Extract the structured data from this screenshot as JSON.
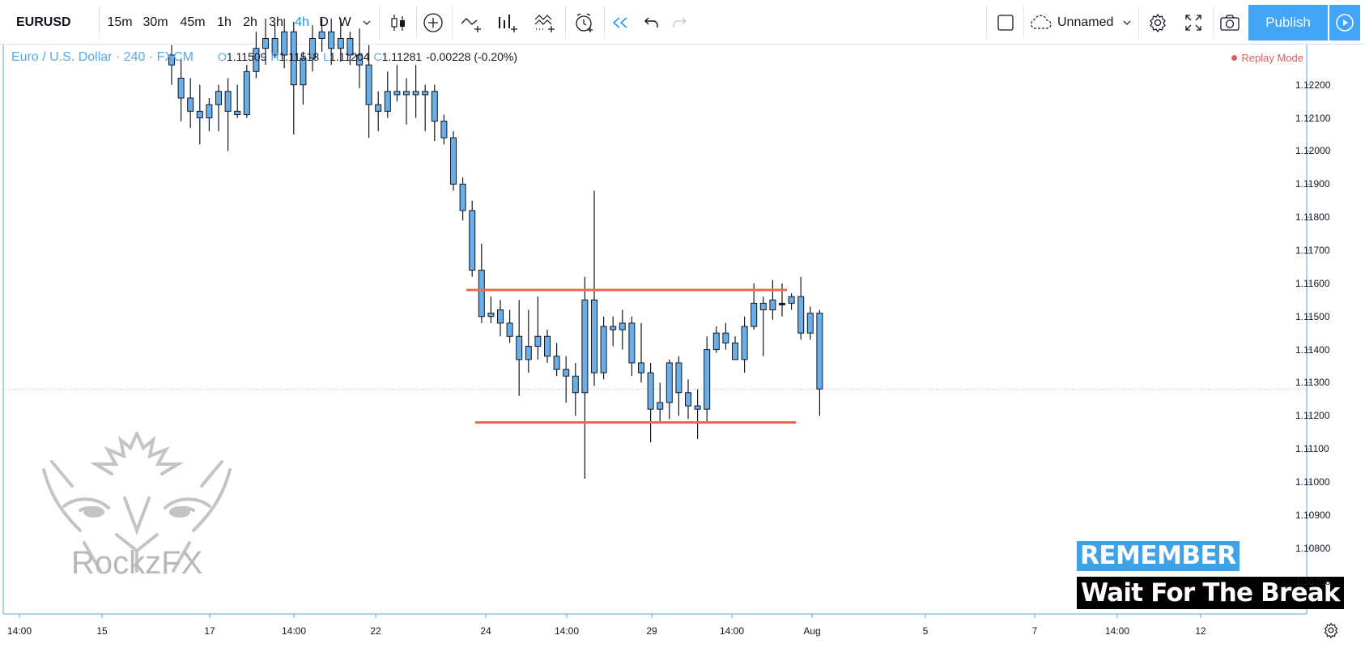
{
  "toolbar": {
    "symbol": "EURUSD",
    "intervals": [
      {
        "label": "15m",
        "active": false
      },
      {
        "label": "30m",
        "active": false
      },
      {
        "label": "45m",
        "active": false
      },
      {
        "label": "1h",
        "active": false
      },
      {
        "label": "2h",
        "active": false
      },
      {
        "label": "3h",
        "active": false
      },
      {
        "label": "4h",
        "active": true
      },
      {
        "label": "D",
        "active": false
      },
      {
        "label": "W",
        "active": false
      }
    ],
    "interval_dropdown_icon": "chevron-down-icon",
    "tool_icons": [
      "candles-icon",
      "add-indicator-icon",
      "compare-icon",
      "indicators-icon",
      "strategy-icon",
      "alert-icon",
      "replay-icon",
      "undo-icon",
      "redo-icon"
    ],
    "layout_name": "Unnamed",
    "publish_label": "Publish",
    "accent_color": "#42a5f5"
  },
  "legend": {
    "title": "Euro / U.S. Dollar · 240 · FXCM",
    "open_key": "O",
    "open": "1.11509",
    "high_key": "H",
    "high": "1.11518",
    "low_key": "L",
    "low": "1.11204",
    "close_key": "C",
    "close": "1.11281",
    "change": "-0.00228 (-0.20%)"
  },
  "replay_mode_label": "Replay Mode",
  "watermark": {
    "text": "RockzFX"
  },
  "overlay": {
    "remember": "REMEMBER",
    "wait": "Wait For The Break"
  },
  "chart_data": {
    "type": "candlestick",
    "symbol": "EURUSD",
    "timeframe": "240",
    "y_ticks": [
      "1.12200",
      "1.12100",
      "1.12000",
      "1.11900",
      "1.11800",
      "1.11700",
      "1.11600",
      "1.11500",
      "1.11400",
      "1.11300",
      "1.11200",
      "1.11100",
      "1.11000",
      "1.10900",
      "1.10800",
      "1.10700"
    ],
    "ylim": [
      1.1066,
      1.1228
    ],
    "x_ticks": [
      "14:00",
      "15",
      "17",
      "14:00",
      "22",
      "24",
      "14:00",
      "29",
      "14:00",
      "Aug",
      "5",
      "7",
      "14:00",
      "12"
    ],
    "resistance_level": 1.1158,
    "support_level": 1.1118,
    "current_price_level": 1.11281,
    "candles": [
      {
        "o": 1.1226,
        "h": 1.1232,
        "l": 1.122,
        "c": 1.1229
      },
      {
        "o": 1.1222,
        "h": 1.1228,
        "l": 1.1209,
        "c": 1.1216
      },
      {
        "o": 1.1216,
        "h": 1.1222,
        "l": 1.1207,
        "c": 1.1212
      },
      {
        "o": 1.1212,
        "h": 1.122,
        "l": 1.1202,
        "c": 1.121
      },
      {
        "o": 1.121,
        "h": 1.1216,
        "l": 1.1206,
        "c": 1.1214
      },
      {
        "o": 1.1214,
        "h": 1.122,
        "l": 1.1206,
        "c": 1.1218
      },
      {
        "o": 1.1218,
        "h": 1.1222,
        "l": 1.12,
        "c": 1.1212
      },
      {
        "o": 1.1212,
        "h": 1.122,
        "l": 1.121,
        "c": 1.1211
      },
      {
        "o": 1.1211,
        "h": 1.1226,
        "l": 1.121,
        "c": 1.1224
      },
      {
        "o": 1.1224,
        "h": 1.1236,
        "l": 1.1222,
        "c": 1.1231
      },
      {
        "o": 1.1231,
        "h": 1.124,
        "l": 1.1226,
        "c": 1.1234
      },
      {
        "o": 1.1234,
        "h": 1.1238,
        "l": 1.1228,
        "c": 1.1229
      },
      {
        "o": 1.1229,
        "h": 1.124,
        "l": 1.1225,
        "c": 1.1236
      },
      {
        "o": 1.1236,
        "h": 1.1239,
        "l": 1.1205,
        "c": 1.122
      },
      {
        "o": 1.122,
        "h": 1.123,
        "l": 1.1214,
        "c": 1.1228
      },
      {
        "o": 1.1228,
        "h": 1.1238,
        "l": 1.1224,
        "c": 1.1234
      },
      {
        "o": 1.1234,
        "h": 1.124,
        "l": 1.123,
        "c": 1.1236
      },
      {
        "o": 1.1236,
        "h": 1.124,
        "l": 1.1226,
        "c": 1.1231
      },
      {
        "o": 1.1231,
        "h": 1.124,
        "l": 1.1227,
        "c": 1.1234
      },
      {
        "o": 1.1234,
        "h": 1.1236,
        "l": 1.1226,
        "c": 1.1229
      },
      {
        "o": 1.1229,
        "h": 1.1237,
        "l": 1.1219,
        "c": 1.1226
      },
      {
        "o": 1.1226,
        "h": 1.1232,
        "l": 1.1204,
        "c": 1.1214
      },
      {
        "o": 1.1214,
        "h": 1.1218,
        "l": 1.1206,
        "c": 1.1212
      },
      {
        "o": 1.1212,
        "h": 1.1224,
        "l": 1.121,
        "c": 1.1218
      },
      {
        "o": 1.1218,
        "h": 1.1226,
        "l": 1.1215,
        "c": 1.1217
      },
      {
        "o": 1.1217,
        "h": 1.1222,
        "l": 1.1208,
        "c": 1.1218
      },
      {
        "o": 1.1218,
        "h": 1.1226,
        "l": 1.121,
        "c": 1.1217
      },
      {
        "o": 1.1217,
        "h": 1.122,
        "l": 1.1206,
        "c": 1.1218
      },
      {
        "o": 1.1218,
        "h": 1.122,
        "l": 1.1203,
        "c": 1.1209
      },
      {
        "o": 1.1209,
        "h": 1.1211,
        "l": 1.1202,
        "c": 1.1204
      },
      {
        "o": 1.1204,
        "h": 1.1206,
        "l": 1.1188,
        "c": 1.119
      },
      {
        "o": 1.119,
        "h": 1.1192,
        "l": 1.1179,
        "c": 1.1182
      },
      {
        "o": 1.1182,
        "h": 1.1185,
        "l": 1.1162,
        "c": 1.1164
      },
      {
        "o": 1.1164,
        "h": 1.1172,
        "l": 1.1148,
        "c": 1.115
      },
      {
        "o": 1.1151,
        "h": 1.1156,
        "l": 1.1148,
        "c": 1.115
      },
      {
        "o": 1.1152,
        "h": 1.1155,
        "l": 1.1144,
        "c": 1.1148
      },
      {
        "o": 1.1148,
        "h": 1.1152,
        "l": 1.1142,
        "c": 1.1144
      },
      {
        "o": 1.1144,
        "h": 1.1155,
        "l": 1.1126,
        "c": 1.1137
      },
      {
        "o": 1.1137,
        "h": 1.1152,
        "l": 1.1133,
        "c": 1.1141
      },
      {
        "o": 1.1141,
        "h": 1.1156,
        "l": 1.1137,
        "c": 1.1144
      },
      {
        "o": 1.1144,
        "h": 1.1146,
        "l": 1.1136,
        "c": 1.1138
      },
      {
        "o": 1.1138,
        "h": 1.1142,
        "l": 1.1132,
        "c": 1.1134
      },
      {
        "o": 1.1134,
        "h": 1.1138,
        "l": 1.1124,
        "c": 1.1132
      },
      {
        "o": 1.1132,
        "h": 1.1136,
        "l": 1.112,
        "c": 1.1127
      },
      {
        "o": 1.1127,
        "h": 1.1162,
        "l": 1.1101,
        "c": 1.1155
      },
      {
        "o": 1.1155,
        "h": 1.1188,
        "l": 1.1129,
        "c": 1.1133
      },
      {
        "o": 1.1133,
        "h": 1.115,
        "l": 1.1131,
        "c": 1.1147
      },
      {
        "o": 1.1147,
        "h": 1.115,
        "l": 1.1141,
        "c": 1.1146
      },
      {
        "o": 1.1146,
        "h": 1.1152,
        "l": 1.114,
        "c": 1.1148
      },
      {
        "o": 1.1148,
        "h": 1.115,
        "l": 1.1132,
        "c": 1.1136
      },
      {
        "o": 1.1136,
        "h": 1.1148,
        "l": 1.113,
        "c": 1.1133
      },
      {
        "o": 1.1133,
        "h": 1.1136,
        "l": 1.1112,
        "c": 1.1122
      },
      {
        "o": 1.1122,
        "h": 1.113,
        "l": 1.1118,
        "c": 1.1124
      },
      {
        "o": 1.1124,
        "h": 1.1137,
        "l": 1.1119,
        "c": 1.1136
      },
      {
        "o": 1.1136,
        "h": 1.1138,
        "l": 1.112,
        "c": 1.1127
      },
      {
        "o": 1.1127,
        "h": 1.1131,
        "l": 1.1119,
        "c": 1.1123
      },
      {
        "o": 1.1123,
        "h": 1.1128,
        "l": 1.1113,
        "c": 1.1122
      },
      {
        "o": 1.1122,
        "h": 1.1144,
        "l": 1.1118,
        "c": 1.114
      },
      {
        "o": 1.114,
        "h": 1.1147,
        "l": 1.1139,
        "c": 1.1145
      },
      {
        "o": 1.1145,
        "h": 1.1148,
        "l": 1.114,
        "c": 1.1142
      },
      {
        "o": 1.1142,
        "h": 1.1144,
        "l": 1.1137,
        "c": 1.1137
      },
      {
        "o": 1.1137,
        "h": 1.115,
        "l": 1.1133,
        "c": 1.1147
      },
      {
        "o": 1.1147,
        "h": 1.116,
        "l": 1.1146,
        "c": 1.1154
      },
      {
        "o": 1.1154,
        "h": 1.1156,
        "l": 1.1138,
        "c": 1.1152
      },
      {
        "o": 1.1152,
        "h": 1.1161,
        "l": 1.1149,
        "c": 1.1155
      },
      {
        "o": 1.1154,
        "h": 1.116,
        "l": 1.115,
        "c": 1.1154
      },
      {
        "o": 1.1154,
        "h": 1.1157,
        "l": 1.1152,
        "c": 1.1156
      },
      {
        "o": 1.1156,
        "h": 1.1162,
        "l": 1.1143,
        "c": 1.1145
      },
      {
        "o": 1.1145,
        "h": 1.1153,
        "l": 1.1143,
        "c": 1.1151
      },
      {
        "o": 1.1151,
        "h": 1.1152,
        "l": 1.112,
        "c": 1.11281
      }
    ]
  }
}
